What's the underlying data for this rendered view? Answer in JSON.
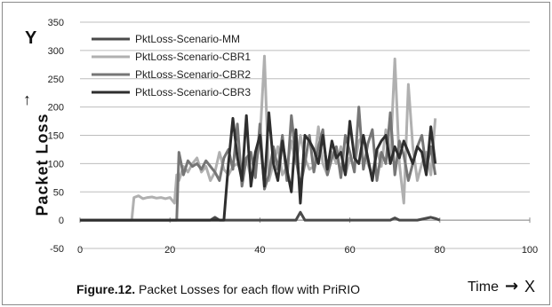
{
  "chart_data": {
    "type": "line",
    "caption_bold": "Figure.12.",
    "caption_rest": " Packet Losses for each flow with PriRIO",
    "ylabel": "Packet Loss",
    "y_letter": "Y",
    "y_arrow": "↑",
    "xlabel": "Time",
    "x_arrow": "→",
    "x_letter": "X",
    "xlim": [
      0,
      100
    ],
    "ylim": [
      -50,
      350
    ],
    "x_ticks": [
      "0",
      "20",
      "40",
      "60",
      "80",
      "100"
    ],
    "y_ticks": [
      "-50",
      "0",
      "50",
      "100",
      "150",
      "200",
      "250",
      "300",
      "350"
    ],
    "grid": "horizontal",
    "legend_position": "top-left",
    "series": [
      {
        "name": "PktLoss-Scenario-MM",
        "color": "#4a4a4a",
        "x": [
          0,
          5,
          10,
          15,
          20,
          25,
          29,
          30,
          31,
          35,
          40,
          45,
          48,
          49,
          50,
          55,
          60,
          65,
          69,
          70,
          71,
          75,
          78,
          79,
          80
        ],
        "y": [
          0,
          0,
          0,
          0,
          0,
          0,
          0,
          5,
          0,
          0,
          0,
          0,
          0,
          14,
          0,
          0,
          0,
          0,
          0,
          4,
          0,
          0,
          5,
          3,
          0
        ]
      },
      {
        "name": "PktLoss-Scenario-CBR1",
        "color": "#b0b0b0",
        "x": [
          0,
          11.5,
          12,
          13,
          14,
          15,
          16,
          17,
          18,
          19,
          20,
          21,
          21.5,
          22,
          23,
          24,
          25,
          26,
          27,
          28,
          29,
          30,
          31,
          32,
          33,
          34,
          35,
          36,
          37,
          38,
          39,
          40,
          41,
          42,
          43,
          44,
          45,
          46,
          47,
          48,
          49,
          50,
          51,
          52,
          53,
          54,
          55,
          56,
          57,
          58,
          59,
          60,
          61,
          62,
          63,
          64,
          65,
          66,
          67,
          68,
          69,
          70,
          71,
          72,
          73,
          74,
          75,
          76,
          77,
          78,
          79
        ],
        "y": [
          0,
          0,
          40,
          43,
          38,
          40,
          41,
          39,
          40,
          38,
          40,
          30,
          80,
          70,
          95,
          85,
          100,
          110,
          85,
          95,
          70,
          85,
          120,
          90,
          80,
          95,
          100,
          85,
          110,
          75,
          90,
          140,
          290,
          70,
          100,
          130,
          80,
          95,
          140,
          100,
          150,
          110,
          90,
          95,
          165,
          100,
          80,
          120,
          100,
          130,
          80,
          110,
          95,
          140,
          150,
          100,
          80,
          125,
          95,
          160,
          110,
          285,
          100,
          30,
          240,
          130,
          70,
          100,
          120,
          80,
          180
        ]
      },
      {
        "name": "PktLoss-Scenario-CBR2",
        "color": "#767676",
        "x": [
          0,
          21.5,
          22,
          23,
          24,
          25,
          26,
          27,
          28,
          29,
          30,
          31,
          32,
          33,
          34,
          35,
          36,
          37,
          38,
          39,
          40,
          41,
          42,
          43,
          44,
          45,
          46,
          47,
          48,
          49,
          50,
          51,
          52,
          53,
          54,
          55,
          56,
          57,
          58,
          59,
          60,
          61,
          62,
          63,
          64,
          65,
          66,
          67,
          68,
          69,
          70,
          71,
          72,
          73,
          74,
          75,
          76,
          77,
          78,
          79
        ],
        "y": [
          0,
          0,
          120,
          80,
          105,
          95,
          100,
          90,
          105,
          95,
          85,
          70,
          110,
          125,
          90,
          170,
          60,
          110,
          120,
          75,
          170,
          55,
          80,
          130,
          90,
          150,
          70,
          185,
          110,
          60,
          100,
          150,
          85,
          130,
          160,
          80,
          110,
          130,
          75,
          150,
          120,
          85,
          200,
          90,
          135,
          160,
          70,
          120,
          100,
          190,
          80,
          140,
          115,
          70,
          100,
          130,
          150,
          90,
          130,
          80
        ]
      },
      {
        "name": "PktLoss-Scenario-CBR3",
        "color": "#2e2e2e",
        "x": [
          0,
          32,
          33,
          34,
          35,
          36,
          37,
          38,
          39,
          40,
          41,
          42,
          43,
          44,
          45,
          46,
          47,
          48,
          49,
          50,
          51,
          52,
          53,
          54,
          55,
          56,
          57,
          58,
          59,
          60,
          61,
          62,
          63,
          64,
          65,
          66,
          67,
          68,
          69,
          70,
          71,
          72,
          73,
          74,
          75,
          76,
          77,
          78,
          79
        ],
        "y": [
          0,
          0,
          100,
          180,
          110,
          70,
          185,
          60,
          120,
          150,
          60,
          190,
          100,
          70,
          140,
          90,
          50,
          160,
          30,
          150,
          140,
          125,
          100,
          150,
          90,
          140,
          110,
          120,
          80,
          175,
          110,
          100,
          150,
          110,
          70,
          125,
          140,
          150,
          100,
          130,
          110,
          140,
          120,
          100,
          130,
          120,
          80,
          165,
          100
        ]
      }
    ]
  }
}
